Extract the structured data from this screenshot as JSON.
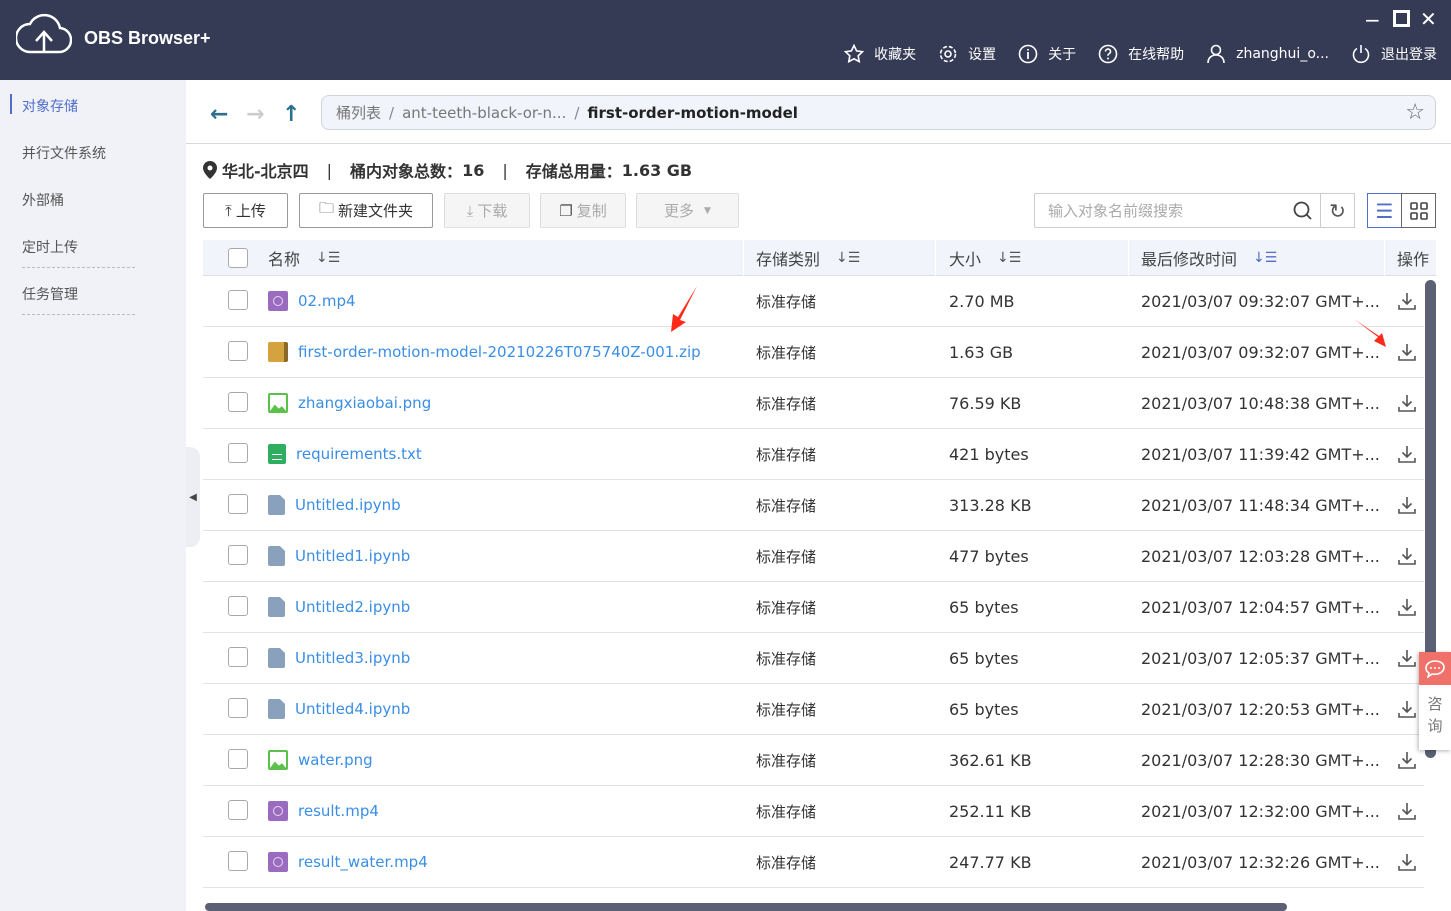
{
  "app": {
    "title": "OBS Browser+"
  },
  "header": {
    "nav": [
      {
        "label": "收藏夹",
        "icon": "star-icon"
      },
      {
        "label": "设置",
        "icon": "gear-icon"
      },
      {
        "label": "关于",
        "icon": "info-icon"
      },
      {
        "label": "在线帮助",
        "icon": "help-icon"
      },
      {
        "label": "zhanghui_o...",
        "icon": "user-icon"
      },
      {
        "label": "退出登录",
        "icon": "power-icon"
      }
    ]
  },
  "sidebar": {
    "items": [
      {
        "label": "对象存储",
        "active": true
      },
      {
        "label": "并行文件系统"
      },
      {
        "label": "外部桶"
      },
      {
        "label": "定时上传"
      },
      {
        "label": "任务管理"
      }
    ]
  },
  "breadcrumb": {
    "items": [
      "桶列表",
      "ant-teeth-black-or-n...",
      "first-order-motion-model"
    ]
  },
  "stats": {
    "region": "华北-北京四",
    "count_label": "桶内对象总数：",
    "count": "16",
    "usage_label": "存储总用量：",
    "usage": "1.63 GB"
  },
  "toolbar": {
    "upload": "上传",
    "new_folder": "新建文件夹",
    "download": "下载",
    "copy": "复制",
    "more": "更多",
    "search_placeholder": "输入对象名前缀搜索"
  },
  "table": {
    "columns": [
      "名称",
      "存储类别",
      "大小",
      "最后修改时间",
      "操作"
    ],
    "rows": [
      {
        "name": "02.mp4",
        "type": "video",
        "class": "标准存储",
        "size": "2.70 MB",
        "time": "2021/03/07 09:32:07 GMT+..."
      },
      {
        "name": "first-order-motion-model-20210226T075740Z-001.zip",
        "type": "zip",
        "class": "标准存储",
        "size": "1.63 GB",
        "time": "2021/03/07 09:32:07 GMT+..."
      },
      {
        "name": "zhangxiaobai.png",
        "type": "image",
        "class": "标准存储",
        "size": "76.59 KB",
        "time": "2021/03/07 10:48:38 GMT+..."
      },
      {
        "name": "requirements.txt",
        "type": "text",
        "class": "标准存储",
        "size": "421 bytes",
        "time": "2021/03/07 11:39:42 GMT+..."
      },
      {
        "name": "Untitled.ipynb",
        "type": "file",
        "class": "标准存储",
        "size": "313.28 KB",
        "time": "2021/03/07 11:48:34 GMT+..."
      },
      {
        "name": "Untitled1.ipynb",
        "type": "file",
        "class": "标准存储",
        "size": "477 bytes",
        "time": "2021/03/07 12:03:28 GMT+..."
      },
      {
        "name": "Untitled2.ipynb",
        "type": "file",
        "class": "标准存储",
        "size": "65 bytes",
        "time": "2021/03/07 12:04:57 GMT+..."
      },
      {
        "name": "Untitled3.ipynb",
        "type": "file",
        "class": "标准存储",
        "size": "65 bytes",
        "time": "2021/03/07 12:05:37 GMT+..."
      },
      {
        "name": "Untitled4.ipynb",
        "type": "file",
        "class": "标准存储",
        "size": "65 bytes",
        "time": "2021/03/07 12:20:53 GMT+..."
      },
      {
        "name": "water.png",
        "type": "image",
        "class": "标准存储",
        "size": "362.61 KB",
        "time": "2021/03/07 12:28:30 GMT+..."
      },
      {
        "name": "result.mp4",
        "type": "video",
        "class": "标准存储",
        "size": "252.11 KB",
        "time": "2021/03/07 12:32:00 GMT+..."
      },
      {
        "name": "result_water.mp4",
        "type": "video",
        "class": "标准存储",
        "size": "247.77 KB",
        "time": "2021/03/07 12:32:26 GMT+..."
      }
    ]
  },
  "consult": {
    "label": "咨询"
  },
  "colors": {
    "header": "#353a55",
    "accent": "#526ecc",
    "link": "#3a8ee6",
    "annotation": "#ff2a1a"
  }
}
